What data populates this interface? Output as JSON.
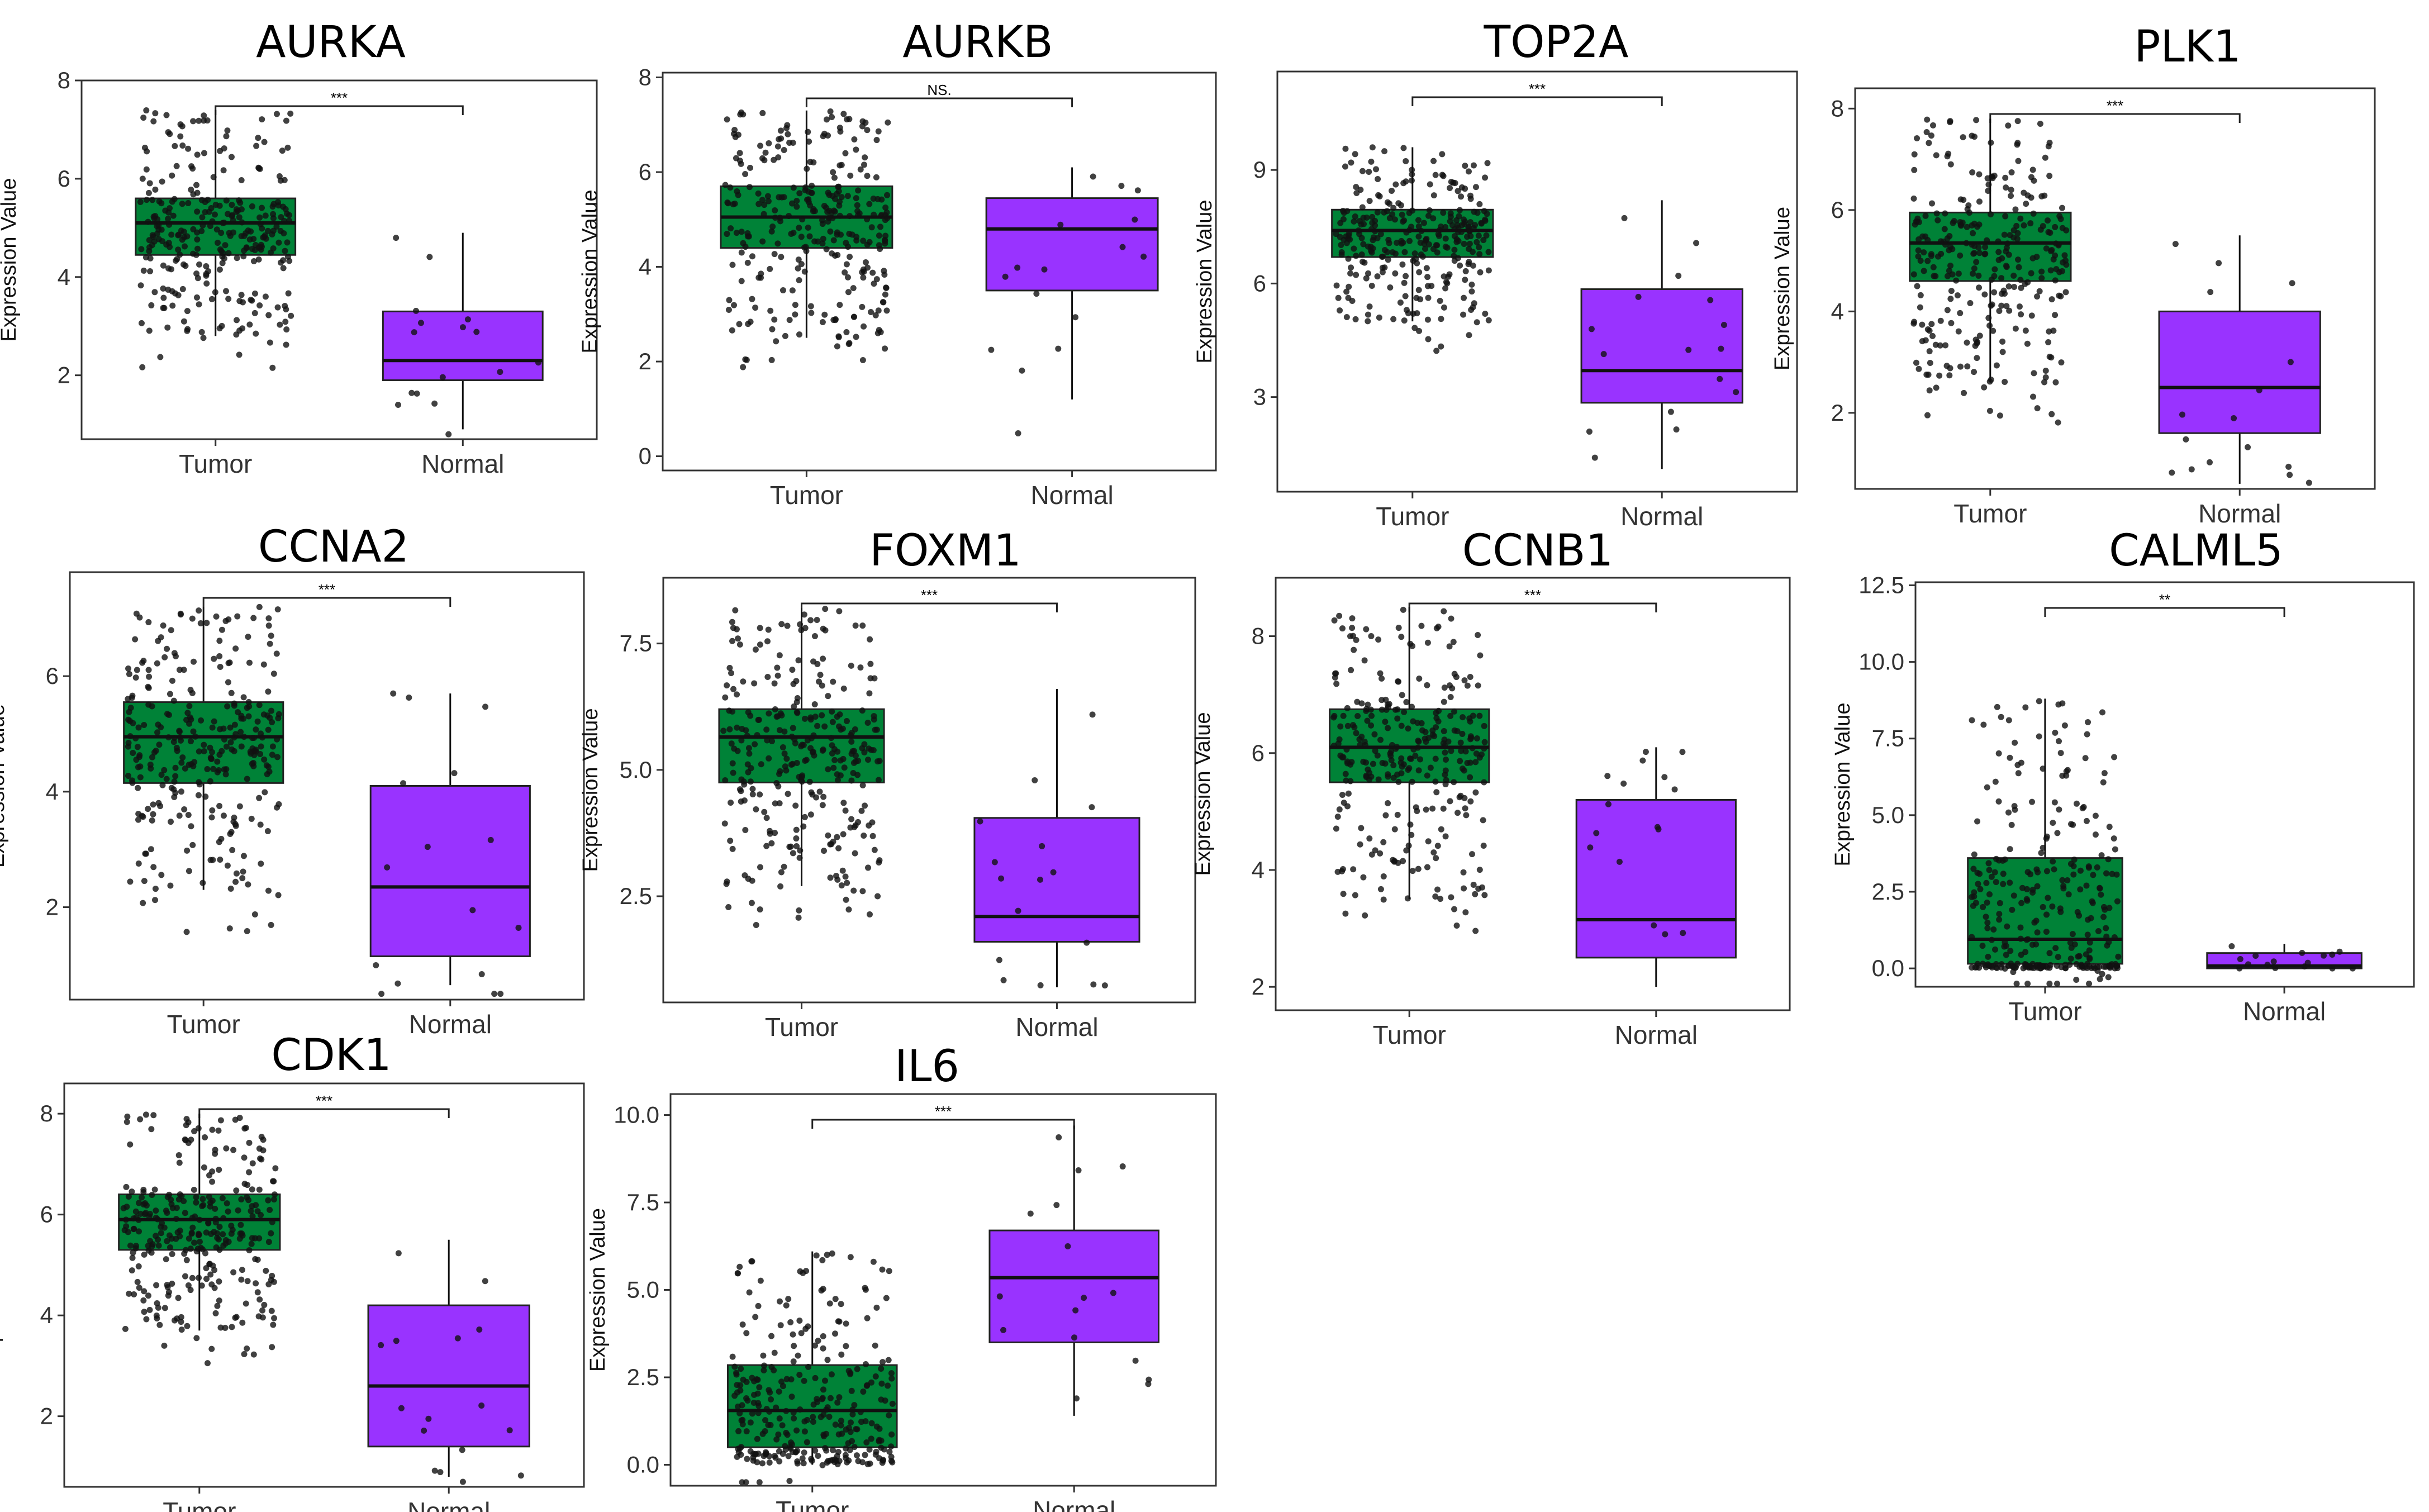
{
  "colors": {
    "tumor": "#008237",
    "normal": "#9933ff",
    "point": "#111111"
  },
  "chart_data": [
    {
      "type": "box",
      "title": "AURKA",
      "ylabel": "Expression Value",
      "categories": [
        "Tumor",
        "Normal"
      ],
      "ylim": [
        0.7,
        8.0
      ],
      "yticks": [
        2,
        4,
        6,
        8
      ],
      "yticklabels": [
        "2",
        "4",
        "6",
        "8"
      ],
      "significance": "***",
      "boxes": [
        {
          "group": "Tumor",
          "q1": 4.45,
          "median": 5.1,
          "q3": 5.6,
          "whisker_low": 2.8,
          "whisker_high": 7.4,
          "n": 300
        },
        {
          "group": "Normal",
          "q1": 1.9,
          "median": 2.3,
          "q3": 3.3,
          "whisker_low": 0.9,
          "whisker_high": 4.9,
          "n": 16
        }
      ]
    },
    {
      "type": "box",
      "title": "AURKB",
      "ylabel": "Expression Value",
      "categories": [
        "Tumor",
        "Normal"
      ],
      "ylim": [
        -0.3,
        8.1
      ],
      "yticks": [
        0,
        2,
        4,
        6,
        8
      ],
      "yticklabels": [
        "0",
        "2",
        "4",
        "6",
        "8"
      ],
      "significance": "NS.",
      "boxes": [
        {
          "group": "Tumor",
          "q1": 4.4,
          "median": 5.05,
          "q3": 5.7,
          "whisker_low": 2.5,
          "whisker_high": 7.3,
          "n": 300
        },
        {
          "group": "Normal",
          "q1": 3.5,
          "median": 4.8,
          "q3": 5.45,
          "whisker_low": 1.2,
          "whisker_high": 6.1,
          "n": 16
        }
      ]
    },
    {
      "type": "box",
      "title": "TOP2A",
      "ylabel": "Expression Value",
      "categories": [
        "Tumor",
        "Normal"
      ],
      "ylim": [
        0.5,
        11.6
      ],
      "yticks": [
        3,
        6,
        9
      ],
      "yticklabels": [
        "3",
        "6",
        "9"
      ],
      "significance": "***",
      "boxes": [
        {
          "group": "Tumor",
          "q1": 6.7,
          "median": 7.4,
          "q3": 7.95,
          "whisker_low": 5.0,
          "whisker_high": 9.6,
          "n": 300
        },
        {
          "group": "Normal",
          "q1": 2.85,
          "median": 3.7,
          "q3": 5.85,
          "whisker_low": 1.1,
          "whisker_high": 8.2,
          "n": 16
        }
      ]
    },
    {
      "type": "box",
      "title": "PLK1",
      "ylabel": "Expression Value",
      "categories": [
        "Tumor",
        "Normal"
      ],
      "ylim": [
        0.5,
        8.4
      ],
      "yticks": [
        2,
        4,
        6,
        8
      ],
      "yticklabels": [
        "2",
        "4",
        "6",
        "8"
      ],
      "significance": "***",
      "boxes": [
        {
          "group": "Tumor",
          "q1": 4.6,
          "median": 5.35,
          "q3": 5.95,
          "whisker_low": 2.6,
          "whisker_high": 7.8,
          "n": 300
        },
        {
          "group": "Normal",
          "q1": 1.6,
          "median": 2.5,
          "q3": 4.0,
          "whisker_low": 0.6,
          "whisker_high": 5.5,
          "n": 16
        }
      ]
    },
    {
      "type": "box",
      "title": "CCNA2",
      "ylabel": "Expression Value",
      "categories": [
        "Tumor",
        "Normal"
      ],
      "ylim": [
        0.4,
        7.8
      ],
      "yticks": [
        2,
        4,
        6
      ],
      "yticklabels": [
        "2",
        "4",
        "6"
      ],
      "significance": "***",
      "boxes": [
        {
          "group": "Tumor",
          "q1": 4.15,
          "median": 4.95,
          "q3": 5.55,
          "whisker_low": 2.3,
          "whisker_high": 7.2,
          "n": 300
        },
        {
          "group": "Normal",
          "q1": 1.15,
          "median": 2.35,
          "q3": 4.1,
          "whisker_low": 0.65,
          "whisker_high": 5.7,
          "n": 16
        }
      ]
    },
    {
      "type": "box",
      "title": "FOXM1",
      "ylabel": "Expression Value",
      "categories": [
        "Tumor",
        "Normal"
      ],
      "ylim": [
        0.4,
        8.8
      ],
      "yticks": [
        2.5,
        5.0,
        7.5
      ],
      "yticklabels": [
        "2.5",
        "5.0",
        "7.5"
      ],
      "significance": "***",
      "boxes": [
        {
          "group": "Tumor",
          "q1": 4.75,
          "median": 5.65,
          "q3": 6.2,
          "whisker_low": 2.7,
          "whisker_high": 8.2,
          "n": 300
        },
        {
          "group": "Normal",
          "q1": 1.6,
          "median": 2.1,
          "q3": 4.05,
          "whisker_low": 0.7,
          "whisker_high": 6.6,
          "n": 16
        }
      ]
    },
    {
      "type": "box",
      "title": "CCNB1",
      "ylabel": "Expression Value",
      "categories": [
        "Tumor",
        "Normal"
      ],
      "ylim": [
        1.6,
        9.0
      ],
      "yticks": [
        2,
        4,
        6,
        8
      ],
      "yticklabels": [
        "2",
        "4",
        "6",
        "8"
      ],
      "significance": "***",
      "boxes": [
        {
          "group": "Tumor",
          "q1": 5.5,
          "median": 6.1,
          "q3": 6.75,
          "whisker_low": 3.5,
          "whisker_high": 8.5,
          "n": 300
        },
        {
          "group": "Normal",
          "q1": 2.5,
          "median": 3.15,
          "q3": 5.2,
          "whisker_low": 2.0,
          "whisker_high": 6.1,
          "n": 16
        }
      ]
    },
    {
      "type": "box",
      "title": "CALML5",
      "ylabel": "Expression Value",
      "categories": [
        "Tumor",
        "Normal"
      ],
      "ylim": [
        -0.6,
        12.6
      ],
      "yticks": [
        0.0,
        2.5,
        5.0,
        7.5,
        10.0,
        12.5
      ],
      "yticklabels": [
        "0.0",
        "2.5",
        "5.0",
        "7.5",
        "10.0",
        "12.5"
      ],
      "significance": "**",
      "boxes": [
        {
          "group": "Tumor",
          "q1": 0.15,
          "median": 0.95,
          "q3": 3.6,
          "whisker_low": 0.0,
          "whisker_high": 8.8,
          "n": 300
        },
        {
          "group": "Normal",
          "q1": 0.0,
          "median": 0.08,
          "q3": 0.5,
          "whisker_low": 0.0,
          "whisker_high": 0.8,
          "n": 16
        }
      ]
    },
    {
      "type": "box",
      "title": "CDK1",
      "ylabel": "Expression Value",
      "categories": [
        "Tumor",
        "Normal"
      ],
      "ylim": [
        0.6,
        8.6
      ],
      "yticks": [
        2,
        4,
        6,
        8
      ],
      "yticklabels": [
        "2",
        "4",
        "6",
        "8"
      ],
      "significance": "***",
      "boxes": [
        {
          "group": "Tumor",
          "q1": 5.3,
          "median": 5.9,
          "q3": 6.4,
          "whisker_low": 3.7,
          "whisker_high": 8.0,
          "n": 300
        },
        {
          "group": "Normal",
          "q1": 1.4,
          "median": 2.6,
          "q3": 4.2,
          "whisker_low": 0.8,
          "whisker_high": 5.5,
          "n": 16
        }
      ]
    },
    {
      "type": "box",
      "title": "IL6",
      "ylabel": "Expression Value",
      "categories": [
        "Tumor",
        "Normal"
      ],
      "ylim": [
        -0.6,
        10.6
      ],
      "yticks": [
        0.0,
        2.5,
        5.0,
        7.5,
        10.0
      ],
      "yticklabels": [
        "0.0",
        "2.5",
        "5.0",
        "7.5",
        "10.0"
      ],
      "significance": "***",
      "boxes": [
        {
          "group": "Tumor",
          "q1": 0.5,
          "median": 1.55,
          "q3": 2.85,
          "whisker_low": 0.0,
          "whisker_high": 6.1,
          "n": 300
        },
        {
          "group": "Normal",
          "q1": 3.5,
          "median": 5.35,
          "q3": 6.7,
          "whisker_low": 1.4,
          "whisker_high": 9.7,
          "n": 16
        }
      ]
    }
  ]
}
